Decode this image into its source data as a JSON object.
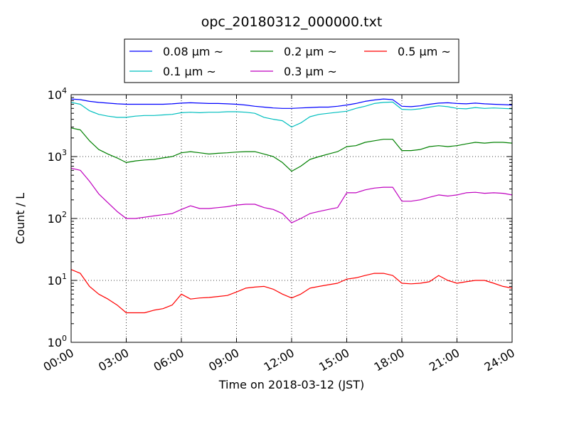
{
  "chart_data": {
    "type": "line",
    "title": "opc_20180312_000000.txt",
    "xlabel": "Time on 2018-03-12 (JST)",
    "ylabel": "Count / L",
    "y_scale": "log",
    "xlim_hours": [
      0,
      24
    ],
    "ylim": [
      1,
      10000
    ],
    "grid": true,
    "legend_position": "top-center-outside",
    "x_ticks": [
      "00:00",
      "03:00",
      "06:00",
      "09:00",
      "12:00",
      "15:00",
      "18:00",
      "21:00",
      "24:00"
    ],
    "y_ticks": [
      {
        "base": "10",
        "exp": "0"
      },
      {
        "base": "10",
        "exp": "1"
      },
      {
        "base": "10",
        "exp": "2"
      },
      {
        "base": "10",
        "exp": "3"
      },
      {
        "base": "10",
        "exp": "4"
      }
    ],
    "x_hours": [
      0,
      0.5,
      1,
      1.5,
      2,
      2.5,
      3,
      3.5,
      4,
      4.5,
      5,
      5.5,
      6,
      6.5,
      7,
      7.5,
      8,
      8.5,
      9,
      9.5,
      10,
      10.5,
      11,
      11.5,
      12,
      12.5,
      13,
      13.5,
      14,
      14.5,
      15,
      15.5,
      16,
      16.5,
      17,
      17.5,
      18,
      18.5,
      19,
      19.5,
      20,
      20.5,
      21,
      21.5,
      22,
      22.5,
      23,
      23.5,
      24
    ],
    "series": [
      {
        "name": "0.08 μm ~",
        "color": "#0000ff",
        "values": [
          8500,
          8300,
          7800,
          7500,
          7300,
          7100,
          7000,
          7000,
          7000,
          7000,
          7000,
          7100,
          7300,
          7400,
          7300,
          7200,
          7200,
          7100,
          7000,
          6800,
          6500,
          6300,
          6100,
          6000,
          6000,
          6100,
          6200,
          6300,
          6300,
          6500,
          6800,
          7200,
          7800,
          8200,
          8500,
          8300,
          6500,
          6400,
          6600,
          7000,
          7300,
          7400,
          7200,
          7100,
          7300,
          7100,
          7000,
          6900,
          6800
        ]
      },
      {
        "name": "0.1 μm ~",
        "color": "#00bfbf",
        "values": [
          7500,
          7000,
          5500,
          4800,
          4500,
          4300,
          4300,
          4500,
          4600,
          4600,
          4700,
          4800,
          5100,
          5200,
          5100,
          5200,
          5200,
          5300,
          5300,
          5200,
          5000,
          4300,
          4000,
          3800,
          3000,
          3500,
          4400,
          4800,
          5000,
          5200,
          5400,
          6000,
          6500,
          7200,
          7500,
          7600,
          5800,
          5700,
          5900,
          6300,
          6600,
          6400,
          6000,
          5900,
          6200,
          6000,
          6100,
          6000,
          5900
        ]
      },
      {
        "name": "0.2 μm ~",
        "color": "#008000",
        "values": [
          2900,
          2700,
          1800,
          1300,
          1100,
          950,
          800,
          850,
          880,
          900,
          950,
          1000,
          1150,
          1200,
          1150,
          1100,
          1130,
          1150,
          1180,
          1200,
          1200,
          1100,
          1000,
          800,
          580,
          700,
          900,
          1000,
          1100,
          1200,
          1450,
          1500,
          1700,
          1800,
          1900,
          1900,
          1250,
          1250,
          1300,
          1450,
          1500,
          1450,
          1500,
          1600,
          1700,
          1650,
          1700,
          1700,
          1650
        ]
      },
      {
        "name": "0.3 μm ~",
        "color": "#bf00bf",
        "values": [
          650,
          600,
          400,
          250,
          180,
          130,
          100,
          100,
          105,
          110,
          115,
          120,
          140,
          160,
          145,
          145,
          150,
          155,
          165,
          170,
          170,
          150,
          140,
          120,
          85,
          100,
          120,
          130,
          140,
          150,
          260,
          260,
          290,
          310,
          320,
          320,
          190,
          190,
          200,
          220,
          240,
          230,
          240,
          260,
          265,
          255,
          260,
          255,
          240
        ]
      },
      {
        "name": "0.5 μm ~",
        "color": "#ff0000",
        "values": [
          15,
          13,
          8,
          6,
          5,
          4,
          3,
          3,
          3,
          3.3,
          3.5,
          4,
          6,
          5,
          5.2,
          5.3,
          5.5,
          5.7,
          6.5,
          7.5,
          7.8,
          8,
          7.2,
          6,
          5.2,
          6,
          7.5,
          8,
          8.5,
          9,
          10.5,
          11,
          12,
          13,
          13,
          12,
          9,
          8.8,
          9,
          9.5,
          12,
          10,
          9,
          9.5,
          10,
          10,
          9,
          8,
          7.5
        ]
      }
    ]
  }
}
